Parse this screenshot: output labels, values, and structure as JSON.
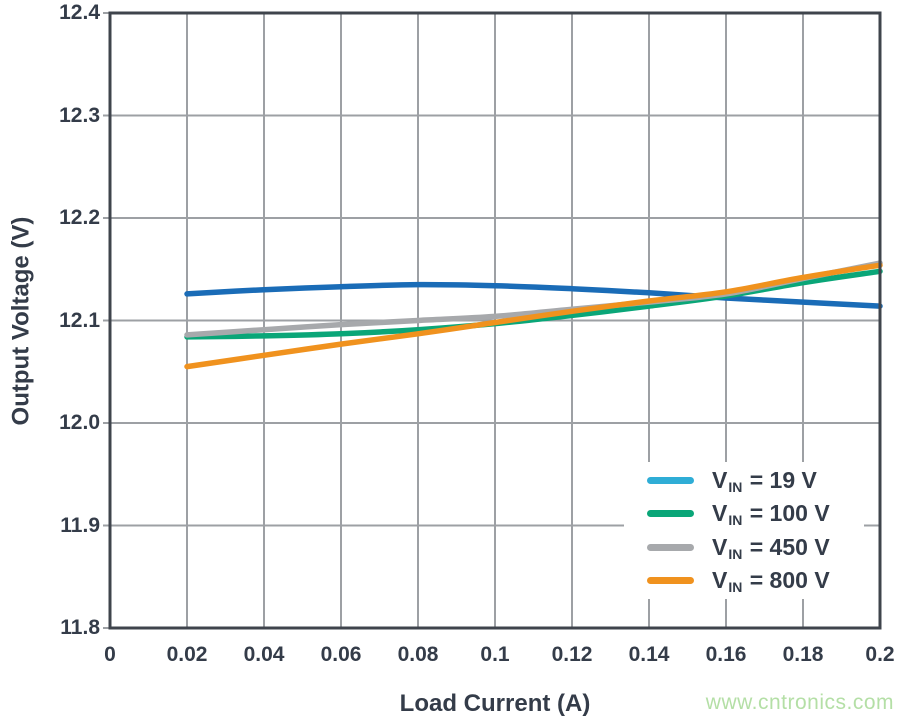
{
  "chart_data": {
    "type": "line",
    "title": "",
    "xlabel": "Load Current (A)",
    "ylabel": "Output Voltage (V)",
    "xlim": [
      0,
      0.2
    ],
    "ylim": [
      11.8,
      12.4
    ],
    "grid": true,
    "legend_position": "lower-right",
    "x_tick_values": [
      0,
      0.02,
      0.04,
      0.06,
      0.08,
      0.1,
      0.12,
      0.14,
      0.16,
      0.18,
      0.2
    ],
    "x_tick_labels": [
      "0",
      "0.02",
      "0.04",
      "0.06",
      "0.08",
      "0.1",
      "0.12",
      "0.14",
      "0.16",
      "0.18",
      "0.2"
    ],
    "y_tick_values": [
      11.8,
      11.9,
      12.0,
      12.1,
      12.2,
      12.3,
      12.4
    ],
    "y_tick_labels": [
      "11.8",
      "11.9",
      "12.0",
      "12.1",
      "12.2",
      "12.3",
      "12.4"
    ],
    "x": [
      0.02,
      0.04,
      0.06,
      0.08,
      0.1,
      0.12,
      0.14,
      0.16,
      0.18,
      0.2
    ],
    "series": [
      {
        "name": "VIN = 19 V",
        "label_main": "V",
        "label_sub": "IN",
        "label_rest": " = 19 V",
        "plot_color": "#1a6cb7",
        "legend_color": "#2fadd6",
        "values": [
          12.126,
          12.13,
          12.133,
          12.135,
          12.134,
          12.131,
          12.127,
          12.122,
          12.118,
          12.114
        ]
      },
      {
        "name": "VIN = 100 V",
        "label_main": "V",
        "label_sub": "IN",
        "label_rest": " = 100 V",
        "plot_color": "#0aa678",
        "legend_color": "#0aa678",
        "values": [
          12.084,
          12.085,
          12.087,
          12.091,
          12.097,
          12.105,
          12.114,
          12.124,
          12.137,
          12.148
        ]
      },
      {
        "name": "VIN = 450 V",
        "label_main": "V",
        "label_sub": "IN",
        "label_rest": " = 450 V",
        "plot_color": "#a7a9ac",
        "legend_color": "#a7a9ac",
        "values": [
          12.086,
          12.091,
          12.096,
          12.1,
          12.104,
          12.111,
          12.118,
          12.126,
          12.141,
          12.156
        ]
      },
      {
        "name": "VIN = 800 V",
        "label_main": "V",
        "label_sub": "IN",
        "label_rest": " = 800 V",
        "plot_color": "#f0921e",
        "legend_color": "#f0921e",
        "values": [
          12.055,
          12.066,
          12.077,
          12.087,
          12.098,
          12.109,
          12.119,
          12.128,
          12.142,
          12.154
        ]
      }
    ]
  },
  "watermark": {
    "text": "www.cntronics.com",
    "color": "#b4dfa6"
  },
  "style": {
    "frame_color": "#3f444c",
    "grid_color": "#9da0a4",
    "text_color": "#343c49",
    "plot_background": "#ffffff"
  }
}
